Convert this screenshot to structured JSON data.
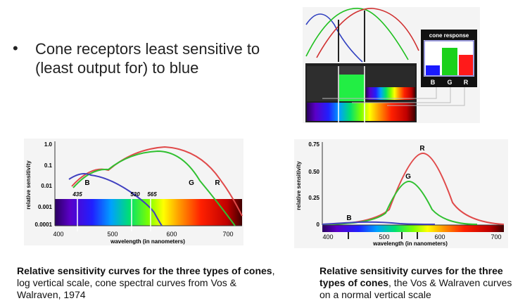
{
  "slide": {
    "bullet_glyph": "•",
    "bullet_text": "Cone receptors least sensitive to (least output for) to blue"
  },
  "cone_response_figure": {
    "panel_title": "cone response",
    "bar_labels": [
      "B",
      "G",
      "R"
    ],
    "bar_levels": [
      0.3,
      0.85,
      0.62
    ],
    "colors": {
      "blue": "#1a1aff",
      "green": "#1bd11b",
      "red": "#ff1a1a"
    }
  },
  "log_chart": {
    "ylabel": "relative sensitivity",
    "xlabel": "wavelength (in nanometers)",
    "y_ticks": [
      "1.0",
      "0.1",
      "0.01",
      "0.001",
      "0.0001"
    ],
    "x_ticks": [
      "400",
      "500",
      "600",
      "700"
    ],
    "markers": [
      "435",
      "530",
      "565"
    ],
    "curve_labels": {
      "B": "B",
      "G": "G",
      "R": "R"
    }
  },
  "linear_chart": {
    "ylabel": "relative sensitivity",
    "xlabel": "wavelength (in nanometers)",
    "y_ticks": [
      "0.75",
      "0.50",
      "0.25",
      "0"
    ],
    "x_ticks": [
      "400",
      "500",
      "600",
      "700"
    ],
    "curve_labels": {
      "B": "B",
      "G": "G",
      "R": "R"
    }
  },
  "caption_left": {
    "bold": "Relative sensitivity curves for the three types of cones",
    "rest": ", log vertical scale, cone spectral curves from Vos & Walraven, 1974"
  },
  "caption_right": {
    "bold": "Relative sensitivity curves for the three types of cones",
    "rest": ", the Vos & Walraven curves on a normal vertical scale"
  }
}
